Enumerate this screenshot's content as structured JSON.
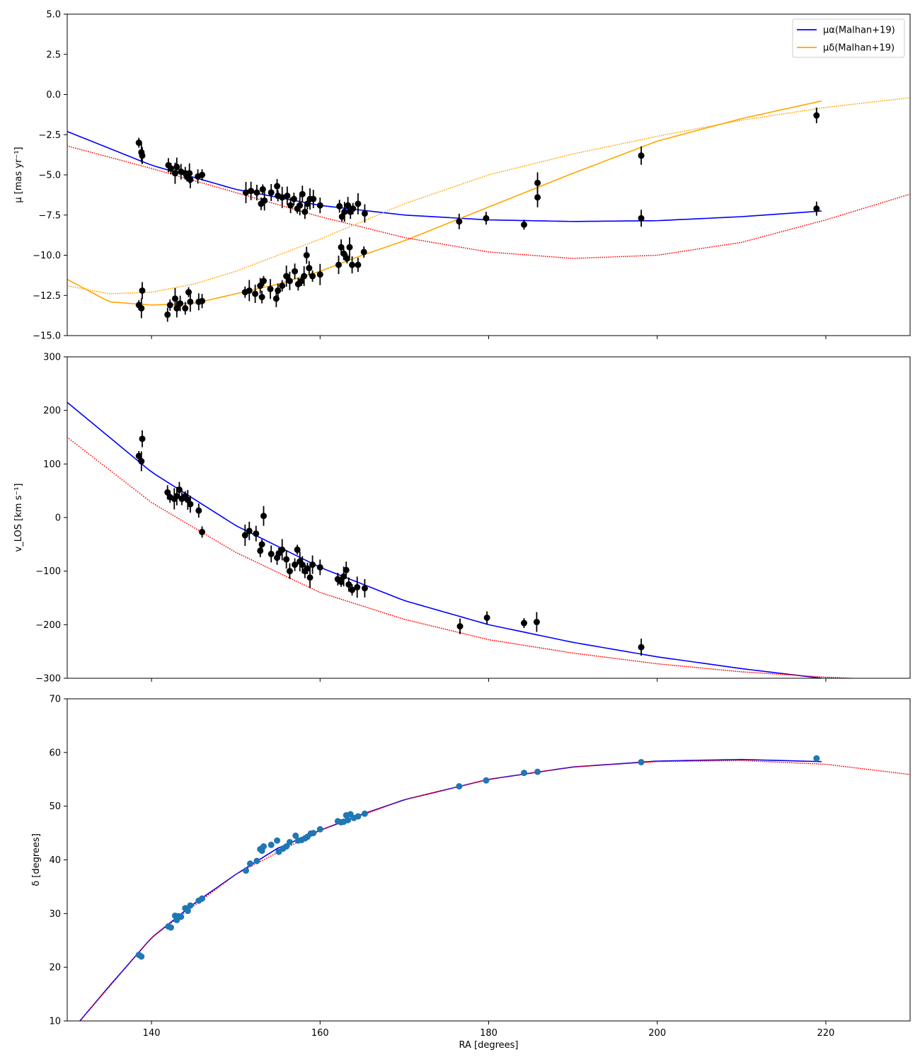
{
  "chart_data": [
    {
      "type": "scatter",
      "panel": "proper-motion",
      "xlabel": "",
      "ylabel": "μ [mas yr⁻¹]",
      "xlim": [
        130,
        230
      ],
      "ylim": [
        -15,
        5
      ],
      "xticks": [
        140,
        160,
        180,
        200,
        220
      ],
      "yticks": [
        -15.0,
        -12.5,
        -10.0,
        -7.5,
        -5.0,
        -2.5,
        0.0,
        2.5,
        5.0
      ],
      "ytick_labels": [
        "−15.0",
        "−12.5",
        "−10.0",
        "−7.5",
        "−5.0",
        "−2.5",
        "0.0",
        "2.5",
        "5.0"
      ],
      "legend": {
        "placement": "top-right",
        "entries": [
          {
            "label": "μα(Malhan+19)",
            "color": "#0000ff"
          },
          {
            "label": "μδ(Malhan+19)",
            "color": "#ffa500"
          }
        ]
      },
      "series": [
        {
          "name": "μα(Malhan+19)",
          "kind": "line",
          "color": "#0000ff",
          "x": [
            130,
            140,
            150,
            160,
            170,
            180,
            190,
            200,
            210,
            219.5
          ],
          "y": [
            -2.3,
            -4.4,
            -5.9,
            -6.9,
            -7.5,
            -7.8,
            -7.9,
            -7.85,
            -7.6,
            -7.25
          ]
        },
        {
          "name": "μδ(Malhan+19)",
          "kind": "line",
          "color": "#ffa500",
          "x": [
            130,
            135,
            140,
            145,
            150,
            155,
            160,
            165,
            170,
            180,
            190,
            200,
            210,
            219.5
          ],
          "y": [
            -11.5,
            -12.9,
            -13.1,
            -13.0,
            -12.4,
            -11.8,
            -11.0,
            -10.0,
            -9.1,
            -7.0,
            -4.9,
            -2.9,
            -1.5,
            -0.4
          ]
        },
        {
          "kind": "dotted",
          "color": "#ff0000",
          "x": [
            130,
            140,
            150,
            160,
            170,
            180,
            190,
            200,
            210,
            220,
            230
          ],
          "y": [
            -3.2,
            -4.6,
            -6.1,
            -7.6,
            -8.9,
            -9.8,
            -10.2,
            -10.0,
            -9.2,
            -7.8,
            -6.2
          ]
        },
        {
          "kind": "dotted",
          "color": "#ffa500",
          "x": [
            130,
            135,
            140,
            145,
            150,
            160,
            170,
            180,
            190,
            200,
            210,
            220,
            230
          ],
          "y": [
            -11.9,
            -12.4,
            -12.3,
            -11.8,
            -11.0,
            -9.0,
            -6.8,
            -5.0,
            -3.7,
            -2.6,
            -1.6,
            -0.8,
            -0.2
          ]
        },
        {
          "kind": "points",
          "color": "#000000",
          "x": [
            138.5,
            138.8,
            138.9,
            142.0,
            142.3,
            142.8,
            143.0,
            143.5,
            144.0,
            144.2,
            144.5,
            144.6,
            145.5,
            146.0,
            151.2,
            151.8,
            152.5,
            153.0,
            153.2,
            153.4,
            154.2,
            154.9,
            155.0,
            155.5,
            156.1,
            156.5,
            156.9,
            157.3,
            157.6,
            157.9,
            158.2,
            158.5,
            158.8,
            159.2,
            160.0,
            162.3,
            162.6,
            162.9,
            163.3,
            163.6,
            163.9,
            164.5,
            165.3,
            176.5,
            179.7,
            184.2,
            185.8,
            198.1,
            218.9
          ],
          "y": [
            -3.0,
            -3.6,
            -3.8,
            -4.4,
            -4.6,
            -4.9,
            -4.5,
            -4.8,
            -4.9,
            -5.1,
            -4.9,
            -5.3,
            -5.1,
            -5.0,
            -6.1,
            -6.0,
            -6.1,
            -6.8,
            -5.9,
            -6.6,
            -6.1,
            -5.7,
            -6.3,
            -6.4,
            -6.3,
            -6.9,
            -6.5,
            -7.1,
            -6.9,
            -6.2,
            -7.3,
            -6.8,
            -6.5,
            -6.5,
            -6.9,
            -6.95,
            -7.6,
            -7.3,
            -6.9,
            -7.3,
            -7.1,
            -6.8,
            -7.4,
            -7.9,
            -7.7,
            -8.1,
            -6.4,
            -7.7,
            -7.1
          ]
        },
        {
          "kind": "points",
          "color": "#000000",
          "x": [
            138.5,
            138.8,
            138.9,
            141.9,
            142.2,
            142.8,
            143.0,
            143.4,
            144.0,
            144.4,
            144.6,
            145.6,
            146.0,
            151.1,
            151.6,
            152.3,
            152.9,
            153.1,
            153.3,
            154.1,
            154.8,
            155.0,
            155.5,
            156.0,
            156.4,
            157.0,
            157.4,
            157.8,
            158.1,
            158.4,
            158.7,
            159.1,
            160.0,
            162.2,
            162.5,
            162.8,
            163.2,
            163.5,
            163.8,
            164.5,
            165.2,
            185.8,
            198.1,
            218.9
          ],
          "y": [
            -13.1,
            -13.3,
            -12.2,
            -13.7,
            -13.1,
            -12.7,
            -13.3,
            -13.0,
            -13.3,
            -12.3,
            -12.9,
            -12.9,
            -12.85,
            -12.3,
            -12.2,
            -12.4,
            -11.9,
            -12.6,
            -11.6,
            -12.1,
            -12.7,
            -12.2,
            -11.9,
            -11.3,
            -11.6,
            -11.0,
            -11.8,
            -11.6,
            -11.3,
            -10.0,
            -10.8,
            -11.3,
            -11.2,
            -10.6,
            -9.5,
            -9.9,
            -10.2,
            -9.5,
            -10.6,
            -10.6,
            -9.8,
            -5.5,
            -3.8,
            -1.3
          ]
        }
      ]
    },
    {
      "type": "scatter",
      "panel": "line-of-sight-velocity",
      "xlabel": "",
      "ylabel": "v_LOS [km s⁻¹]",
      "xlim": [
        130,
        230
      ],
      "ylim": [
        -300,
        300
      ],
      "xticks": [
        140,
        160,
        180,
        200,
        220
      ],
      "yticks": [
        -300,
        -200,
        -100,
        0,
        100,
        200,
        300
      ],
      "ytick_labels": [
        "−300",
        "−200",
        "−100",
        "0",
        "100",
        "200",
        "300"
      ],
      "series": [
        {
          "kind": "line",
          "color": "#0000ff",
          "x": [
            130,
            140,
            150,
            160,
            170,
            180,
            190,
            200,
            210,
            219.5
          ],
          "y": [
            215,
            85,
            -15,
            -93,
            -155,
            -200,
            -233,
            -260,
            -282,
            -300
          ]
        },
        {
          "kind": "dotted",
          "color": "#ff0000",
          "x": [
            130,
            140,
            150,
            160,
            170,
            180,
            190,
            200,
            210,
            220,
            223
          ],
          "y": [
            150,
            28,
            -65,
            -140,
            -190,
            -228,
            -253,
            -273,
            -288,
            -298,
            -300
          ]
        },
        {
          "kind": "points",
          "color": "#000000",
          "x": [
            138.5,
            138.8,
            138.9,
            141.9,
            142.2,
            142.7,
            143.0,
            143.3,
            143.6,
            144.0,
            144.3,
            144.6,
            145.6,
            146.0,
            151.1,
            151.6,
            152.4,
            152.9,
            153.1,
            153.3,
            154.2,
            154.9,
            155.1,
            155.5,
            156.0,
            156.4,
            157.0,
            157.3,
            157.6,
            157.9,
            158.2,
            158.5,
            158.8,
            159.1,
            160.0,
            162.1,
            162.5,
            162.8,
            163.1,
            163.4,
            163.8,
            164.4,
            165.3,
            176.6,
            179.8,
            184.2,
            185.7,
            198.1
          ],
          "y": [
            115,
            105,
            147,
            47,
            38,
            35,
            40,
            52,
            35,
            40,
            33,
            25,
            13,
            -27,
            -33,
            -25,
            -30,
            -62,
            -50,
            3,
            -68,
            -75,
            -67,
            -60,
            -78,
            -100,
            -88,
            -60,
            -82,
            -88,
            -100,
            -95,
            -112,
            -88,
            -93,
            -115,
            -120,
            -110,
            -98,
            -125,
            -135,
            -130,
            -132,
            -203,
            -187,
            -197,
            -195,
            -242
          ]
        }
      ]
    },
    {
      "type": "scatter",
      "panel": "declination",
      "xlabel": "RA [degrees]",
      "ylabel": "δ [degrees]",
      "xlim": [
        130,
        230
      ],
      "ylim": [
        10,
        70
      ],
      "xticks": [
        140,
        160,
        180,
        200,
        220
      ],
      "yticks": [
        10,
        20,
        30,
        40,
        50,
        60,
        70
      ],
      "ytick_labels": [
        "10",
        "20",
        "30",
        "40",
        "50",
        "60",
        "70"
      ],
      "series": [
        {
          "kind": "line",
          "color": "#0000ff",
          "x": [
            131.5,
            135,
            140,
            145,
            150,
            155,
            160,
            165,
            170,
            180,
            190,
            200,
            210,
            219.5
          ],
          "y": [
            10,
            16.5,
            25.5,
            31.8,
            37.3,
            42.2,
            45.5,
            48.5,
            51.2,
            55.0,
            57.3,
            58.4,
            58.7,
            58.3
          ]
        },
        {
          "kind": "dotted",
          "color": "#ff0000",
          "x": [
            131.5,
            140,
            150,
            160,
            170,
            180,
            190,
            200,
            210,
            220,
            230
          ],
          "y": [
            10,
            25.5,
            37.3,
            45.5,
            51.2,
            55.0,
            57.3,
            58.3,
            58.5,
            57.8,
            55.9
          ]
        },
        {
          "kind": "points",
          "color": "#1f77b4",
          "x": [
            138.5,
            138.8,
            142.0,
            142.3,
            142.8,
            143.0,
            143.2,
            143.5,
            144.0,
            144.3,
            144.6,
            145.6,
            146.0,
            151.2,
            151.7,
            152.5,
            152.9,
            153.1,
            153.3,
            154.2,
            154.9,
            155.1,
            155.6,
            156.0,
            156.4,
            157.1,
            157.4,
            157.8,
            158.2,
            158.5,
            158.9,
            159.2,
            160.0,
            162.1,
            162.5,
            162.8,
            163.1,
            163.3,
            163.6,
            164.0,
            164.5,
            165.3,
            176.5,
            179.7,
            184.2,
            185.8,
            198.1,
            218.9
          ],
          "y": [
            22.3,
            22.0,
            27.6,
            27.4,
            29.6,
            28.8,
            29.5,
            29.4,
            31.0,
            30.5,
            31.5,
            32.4,
            32.8,
            38.0,
            39.3,
            39.8,
            42.0,
            41.7,
            42.5,
            42.8,
            43.6,
            41.5,
            42.1,
            42.5,
            43.3,
            44.5,
            43.6,
            43.7,
            44.0,
            44.3,
            44.9,
            45.0,
            45.7,
            47.2,
            47.0,
            47.1,
            48.3,
            47.4,
            48.5,
            47.8,
            48.1,
            48.6,
            53.7,
            54.8,
            56.2,
            56.4,
            58.2,
            58.9
          ]
        }
      ]
    }
  ]
}
